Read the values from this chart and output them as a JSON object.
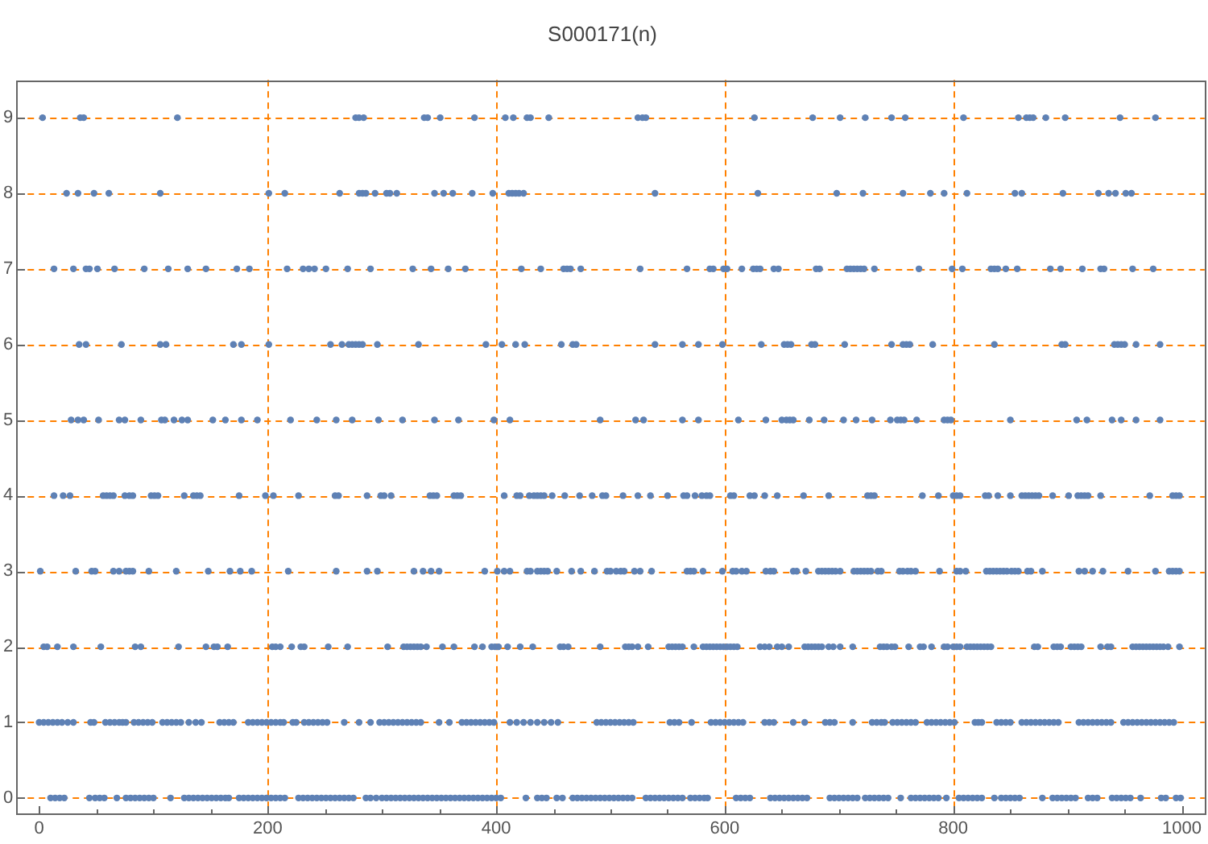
{
  "chart_data": {
    "type": "scatter",
    "title": "S000171(n)",
    "color": "#5e81b5",
    "marker": "circle",
    "x": [
      3,
      36,
      39,
      121,
      277,
      280,
      284,
      337,
      340,
      351,
      381,
      408,
      415,
      427,
      430,
      446,
      524,
      528,
      531,
      626,
      677,
      701,
      723,
      746,
      758,
      809,
      857,
      864,
      867,
      870,
      881,
      898,
      946,
      977,
      24,
      34,
      48,
      61,
      106,
      201,
      215,
      263,
      280,
      283,
      286,
      294,
      304,
      307,
      313,
      346,
      354,
      362,
      379,
      397,
      411,
      414,
      417,
      420,
      424,
      539,
      629,
      698,
      721,
      756,
      780,
      792,
      812,
      854,
      860,
      896,
      927,
      936,
      942,
      951,
      956,
      13,
      30,
      41,
      44,
      51,
      66,
      92,
      113,
      130,
      146,
      173,
      184,
      217,
      231,
      236,
      241,
      251,
      270,
      290,
      327,
      343,
      358,
      373,
      422,
      439,
      459,
      462,
      465,
      474,
      526,
      567,
      587,
      590,
      599,
      602,
      615,
      625,
      628,
      631,
      643,
      647,
      680,
      683,
      707,
      710,
      713,
      716,
      719,
      722,
      731,
      770,
      799,
      808,
      833,
      836,
      839,
      846,
      856,
      885,
      894,
      913,
      929,
      932,
      957,
      975,
      35,
      41,
      72,
      106,
      111,
      170,
      177,
      201,
      255,
      265,
      271,
      274,
      277,
      280,
      283,
      296,
      332,
      391,
      405,
      417,
      425,
      457,
      467,
      470,
      539,
      563,
      577,
      598,
      632,
      652,
      655,
      658,
      676,
      679,
      705,
      746,
      756,
      759,
      762,
      782,
      836,
      895,
      898,
      941,
      944,
      947,
      950,
      960,
      981,
      28,
      34,
      39,
      52,
      70,
      75,
      89,
      107,
      110,
      118,
      125,
      130,
      152,
      163,
      177,
      191,
      220,
      243,
      260,
      274,
      297,
      318,
      346,
      367,
      398,
      412,
      491,
      522,
      529,
      563,
      577,
      612,
      636,
      650,
      654,
      657,
      660,
      674,
      687,
      704,
      715,
      729,
      745,
      751,
      754,
      757,
      768,
      792,
      795,
      798,
      850,
      908,
      917,
      939,
      947,
      960,
      981,
      13,
      21,
      27,
      56,
      59,
      62,
      65,
      75,
      79,
      82,
      98,
      101,
      104,
      127,
      135,
      138,
      141,
      175,
      198,
      205,
      227,
      259,
      262,
      287,
      299,
      302,
      308,
      342,
      345,
      348,
      363,
      366,
      369,
      407,
      418,
      421,
      429,
      433,
      436,
      439,
      442,
      449,
      460,
      473,
      484,
      493,
      496,
      511,
      524,
      535,
      550,
      564,
      567,
      574,
      580,
      584,
      587,
      605,
      608,
      622,
      626,
      635,
      646,
      669,
      691,
      725,
      728,
      731,
      773,
      787,
      800,
      803,
      806,
      828,
      831,
      839,
      850,
      860,
      863,
      866,
      869,
      872,
      875,
      887,
      901,
      909,
      912,
      915,
      918,
      929,
      972,
      992,
      995,
      998,
      1,
      32,
      46,
      49,
      65,
      70,
      76,
      79,
      82,
      96,
      120,
      148,
      167,
      176,
      186,
      218,
      260,
      287,
      296,
      328,
      336,
      343,
      350,
      390,
      401,
      407,
      412,
      427,
      430,
      436,
      439,
      442,
      445,
      453,
      466,
      474,
      486,
      497,
      500,
      505,
      509,
      512,
      521,
      526,
      536,
      567,
      570,
      573,
      581,
      598,
      607,
      610,
      615,
      619,
      636,
      640,
      643,
      660,
      663,
      671,
      682,
      685,
      688,
      691,
      694,
      697,
      701,
      713,
      716,
      719,
      722,
      725,
      728,
      734,
      737,
      753,
      756,
      760,
      763,
      767,
      788,
      803,
      806,
      811,
      829,
      832,
      835,
      838,
      841,
      844,
      847,
      851,
      854,
      857,
      865,
      868,
      878,
      910,
      915,
      922,
      931,
      953,
      977,
      989,
      992,
      995,
      998,
      4,
      7,
      16,
      30,
      54,
      84,
      89,
      122,
      146,
      153,
      156,
      165,
      204,
      207,
      211,
      221,
      229,
      232,
      253,
      270,
      305,
      319,
      322,
      325,
      328,
      331,
      334,
      339,
      353,
      363,
      381,
      388,
      396,
      399,
      402,
      410,
      421,
      432,
      456,
      459,
      463,
      491,
      513,
      516,
      519,
      524,
      533,
      551,
      554,
      557,
      560,
      563,
      573,
      581,
      584,
      587,
      590,
      593,
      596,
      599,
      602,
      605,
      608,
      611,
      631,
      635,
      639,
      646,
      650,
      656,
      670,
      673,
      676,
      679,
      682,
      685,
      691,
      695,
      701,
      712,
      736,
      739,
      742,
      746,
      749,
      761,
      771,
      774,
      781,
      792,
      795,
      800,
      803,
      806,
      812,
      815,
      818,
      821,
      824,
      827,
      830,
      833,
      871,
      874,
      888,
      891,
      894,
      903,
      906,
      909,
      912,
      929,
      935,
      938,
      957,
      960,
      963,
      966,
      969,
      972,
      975,
      978,
      981,
      984,
      988,
      998,
      0,
      4,
      8,
      12,
      16,
      20,
      25,
      30,
      45,
      48,
      58,
      62,
      66,
      70,
      73,
      76,
      83,
      87,
      91,
      95,
      99,
      108,
      112,
      116,
      120,
      124,
      131,
      137,
      142,
      158,
      162,
      166,
      170,
      183,
      187,
      191,
      195,
      199,
      203,
      207,
      211,
      214,
      222,
      225,
      232,
      236,
      240,
      244,
      248,
      252,
      267,
      280,
      290,
      298,
      302,
      306,
      310,
      314,
      318,
      322,
      326,
      330,
      334,
      350,
      359,
      370,
      374,
      378,
      382,
      386,
      390,
      394,
      398,
      412,
      418,
      424,
      430,
      436,
      442,
      448,
      454,
      488,
      492,
      496,
      500,
      504,
      508,
      512,
      516,
      520,
      552,
      556,
      560,
      571,
      588,
      592,
      596,
      600,
      604,
      608,
      612,
      616,
      635,
      639,
      643,
      660,
      670,
      688,
      692,
      696,
      712,
      729,
      733,
      737,
      740,
      747,
      751,
      755,
      759,
      763,
      767,
      777,
      781,
      785,
      789,
      793,
      797,
      801,
      819,
      822,
      825,
      838,
      842,
      846,
      850,
      860,
      864,
      868,
      872,
      876,
      880,
      884,
      888,
      892,
      910,
      914,
      918,
      922,
      926,
      930,
      934,
      938,
      949,
      953,
      957,
      961,
      965,
      969,
      973,
      977,
      981,
      985,
      989,
      993,
      10,
      14,
      18,
      22,
      44,
      49,
      53,
      57,
      68,
      76,
      80,
      84,
      88,
      92,
      96,
      100,
      115,
      127,
      131,
      135,
      139,
      143,
      147,
      151,
      155,
      159,
      163,
      166,
      175,
      179,
      183,
      187,
      191,
      195,
      199,
      203,
      207,
      211,
      215,
      227,
      231,
      235,
      239,
      243,
      247,
      251,
      255,
      259,
      263,
      267,
      271,
      275,
      286,
      290,
      295,
      300,
      304,
      308,
      312,
      316,
      320,
      324,
      328,
      332,
      336,
      340,
      344,
      348,
      352,
      356,
      360,
      364,
      368,
      372,
      376,
      380,
      384,
      388,
      392,
      396,
      400,
      404,
      426,
      436,
      440,
      444,
      453,
      458,
      467,
      471,
      475,
      479,
      483,
      487,
      491,
      495,
      499,
      503,
      507,
      511,
      515,
      519,
      531,
      535,
      539,
      543,
      547,
      551,
      555,
      559,
      563,
      570,
      574,
      578,
      582,
      585,
      610,
      614,
      618,
      622,
      640,
      644,
      648,
      652,
      656,
      660,
      664,
      668,
      672,
      692,
      696,
      700,
      704,
      708,
      712,
      716,
      723,
      727,
      731,
      735,
      739,
      743,
      754,
      763,
      767,
      771,
      775,
      779,
      783,
      787,
      794,
      805,
      809,
      813,
      817,
      821,
      825,
      836,
      842,
      846,
      850,
      854,
      858,
      878,
      887,
      891,
      895,
      899,
      903,
      907,
      918,
      922,
      926,
      939,
      943,
      947,
      951,
      955,
      964,
      982,
      986,
      995,
      999
    ],
    "values": [
      9,
      9,
      9,
      9,
      9,
      9,
      9,
      9,
      9,
      9,
      9,
      9,
      9,
      9,
      9,
      9,
      9,
      9,
      9,
      9,
      9,
      9,
      9,
      9,
      9,
      9,
      9,
      9,
      9,
      9,
      9,
      9,
      9,
      9,
      8,
      8,
      8,
      8,
      8,
      8,
      8,
      8,
      8,
      8,
      8,
      8,
      8,
      8,
      8,
      8,
      8,
      8,
      8,
      8,
      8,
      8,
      8,
      8,
      8,
      8,
      8,
      8,
      8,
      8,
      8,
      8,
      8,
      8,
      8,
      8,
      8,
      8,
      8,
      8,
      8,
      7,
      7,
      7,
      7,
      7,
      7,
      7,
      7,
      7,
      7,
      7,
      7,
      7,
      7,
      7,
      7,
      7,
      7,
      7,
      7,
      7,
      7,
      7,
      7,
      7,
      7,
      7,
      7,
      7,
      7,
      7,
      7,
      7,
      7,
      7,
      7,
      7,
      7,
      7,
      7,
      7,
      7,
      7,
      7,
      7,
      7,
      7,
      7,
      7,
      7,
      7,
      7,
      7,
      7,
      7,
      7,
      7,
      7,
      7,
      7,
      7,
      7,
      7,
      7,
      7,
      6,
      6,
      6,
      6,
      6,
      6,
      6,
      6,
      6,
      6,
      6,
      6,
      6,
      6,
      6,
      6,
      6,
      6,
      6,
      6,
      6,
      6,
      6,
      6,
      6,
      6,
      6,
      6,
      6,
      6,
      6,
      6,
      6,
      6,
      6,
      6,
      6,
      6,
      6,
      6,
      6,
      6,
      6,
      6,
      6,
      6,
      6,
      6,
      6,
      5,
      5,
      5,
      5,
      5,
      5,
      5,
      5,
      5,
      5,
      5,
      5,
      5,
      5,
      5,
      5,
      5,
      5,
      5,
      5,
      5,
      5,
      5,
      5,
      5,
      5,
      5,
      5,
      5,
      5,
      5,
      5,
      5,
      5,
      5,
      5,
      5,
      5,
      5,
      5,
      5,
      5,
      5,
      5,
      5,
      5,
      5,
      5,
      5,
      5,
      5,
      5,
      5,
      5,
      5,
      5,
      5,
      4,
      4,
      4,
      4,
      4,
      4,
      4,
      4,
      4,
      4,
      4,
      4,
      4,
      4,
      4,
      4,
      4,
      4,
      4,
      4,
      4,
      4,
      4,
      4,
      4,
      4,
      4,
      4,
      4,
      4,
      4,
      4,
      4,
      4,
      4,
      4,
      4,
      4,
      4,
      4,
      4,
      4,
      4,
      4,
      4,
      4,
      4,
      4,
      4,
      4,
      4,
      4,
      4,
      4,
      4,
      4,
      4,
      4,
      4,
      4,
      4,
      4,
      4,
      4,
      4,
      4,
      4,
      4,
      4,
      4,
      4,
      4,
      4,
      4,
      4,
      4,
      4,
      4,
      4,
      4,
      4,
      4,
      4,
      4,
      4,
      4,
      4,
      4,
      4,
      4,
      4,
      4,
      4,
      4,
      3,
      3,
      3,
      3,
      3,
      3,
      3,
      3,
      3,
      3,
      3,
      3,
      3,
      3,
      3,
      3,
      3,
      3,
      3,
      3,
      3,
      3,
      3,
      3,
      3,
      3,
      3,
      3,
      3,
      3,
      3,
      3,
      3,
      3,
      3,
      3,
      3,
      3,
      3,
      3,
      3,
      3,
      3,
      3,
      3,
      3,
      3,
      3,
      3,
      3,
      3,
      3,
      3,
      3,
      3,
      3,
      3,
      3,
      3,
      3,
      3,
      3,
      3,
      3,
      3,
      3,
      3,
      3,
      3,
      3,
      3,
      3,
      3,
      3,
      3,
      3,
      3,
      3,
      3,
      3,
      3,
      3,
      3,
      3,
      3,
      3,
      3,
      3,
      3,
      3,
      3,
      3,
      3,
      3,
      3,
      3,
      3,
      3,
      3,
      3,
      3,
      3,
      3,
      3,
      3,
      3,
      3,
      2,
      2,
      2,
      2,
      2,
      2,
      2,
      2,
      2,
      2,
      2,
      2,
      2,
      2,
      2,
      2,
      2,
      2,
      2,
      2,
      2,
      2,
      2,
      2,
      2,
      2,
      2,
      2,
      2,
      2,
      2,
      2,
      2,
      2,
      2,
      2,
      2,
      2,
      2,
      2,
      2,
      2,
      2,
      2,
      2,
      2,
      2,
      2,
      2,
      2,
      2,
      2,
      2,
      2,
      2,
      2,
      2,
      2,
      2,
      2,
      2,
      2,
      2,
      2,
      2,
      2,
      2,
      2,
      2,
      2,
      2,
      2,
      2,
      2,
      2,
      2,
      2,
      2,
      2,
      2,
      2,
      2,
      2,
      2,
      2,
      2,
      2,
      2,
      2,
      2,
      2,
      2,
      2,
      2,
      2,
      2,
      2,
      2,
      2,
      2,
      2,
      2,
      2,
      2,
      2,
      2,
      2,
      2,
      2,
      2,
      2,
      2,
      2,
      2,
      2,
      2,
      2,
      2,
      2,
      2,
      2,
      2,
      2,
      2,
      2,
      2,
      1,
      1,
      1,
      1,
      1,
      1,
      1,
      1,
      1,
      1,
      1,
      1,
      1,
      1,
      1,
      1,
      1,
      1,
      1,
      1,
      1,
      1,
      1,
      1,
      1,
      1,
      1,
      1,
      1,
      1,
      1,
      1,
      1,
      1,
      1,
      1,
      1,
      1,
      1,
      1,
      1,
      1,
      1,
      1,
      1,
      1,
      1,
      1,
      1,
      1,
      1,
      1,
      1,
      1,
      1,
      1,
      1,
      1,
      1,
      1,
      1,
      1,
      1,
      1,
      1,
      1,
      1,
      1,
      1,
      1,
      1,
      1,
      1,
      1,
      1,
      1,
      1,
      1,
      1,
      1,
      1,
      1,
      1,
      1,
      1,
      1,
      1,
      1,
      1,
      1,
      1,
      1,
      1,
      1,
      1,
      1,
      1,
      1,
      1,
      1,
      1,
      1,
      1,
      1,
      1,
      1,
      1,
      1,
      1,
      1,
      1,
      1,
      1,
      1,
      1,
      1,
      1,
      1,
      1,
      1,
      1,
      1,
      1,
      1,
      1,
      1,
      1,
      1,
      1,
      1,
      1,
      1,
      1,
      1,
      1,
      1,
      1,
      1,
      1,
      1,
      1,
      1,
      1,
      1,
      1,
      1,
      1,
      1,
      1,
      1,
      1,
      1,
      1,
      1,
      1,
      1,
      1,
      1,
      1,
      1,
      1,
      1,
      1,
      1,
      0,
      0,
      0,
      0,
      0,
      0,
      0,
      0,
      0,
      0,
      0,
      0,
      0,
      0,
      0,
      0,
      0,
      0,
      0,
      0,
      0,
      0,
      0,
      0,
      0,
      0,
      0,
      0,
      0,
      0,
      0,
      0,
      0,
      0,
      0,
      0,
      0,
      0,
      0,
      0,
      0,
      0,
      0,
      0,
      0,
      0,
      0,
      0,
      0,
      0,
      0,
      0,
      0,
      0,
      0,
      0,
      0,
      0,
      0,
      0,
      0,
      0,
      0,
      0,
      0,
      0,
      0,
      0,
      0,
      0,
      0,
      0,
      0,
      0,
      0,
      0,
      0,
      0,
      0,
      0,
      0,
      0,
      0,
      0,
      0,
      0,
      0,
      0,
      0,
      0,
      0,
      0,
      0,
      0,
      0,
      0,
      0,
      0,
      0,
      0,
      0,
      0,
      0,
      0,
      0,
      0,
      0,
      0,
      0,
      0,
      0,
      0,
      0,
      0,
      0,
      0,
      0,
      0,
      0,
      0,
      0,
      0,
      0,
      0,
      0,
      0,
      0,
      0,
      0,
      0,
      0,
      0,
      0,
      0,
      0,
      0,
      0,
      0,
      0,
      0,
      0,
      0,
      0,
      0,
      0,
      0,
      0,
      0,
      0,
      0,
      0,
      0,
      0,
      0,
      0,
      0,
      0,
      0,
      0,
      0,
      0,
      0,
      0,
      0,
      0,
      0,
      0,
      0,
      0,
      0,
      0,
      0,
      0,
      0,
      0,
      0,
      0,
      0,
      0,
      0,
      0,
      0,
      0
    ],
    "xlim": [
      -20,
      1020
    ],
    "ylim": [
      -0.2,
      9.5
    ],
    "xticks": [
      0,
      {
        "value": 50,
        "label": null
      },
      {
        "value": 100,
        "label": null
      },
      {
        "value": 150,
        "label": null
      },
      200,
      {
        "value": 250,
        "label": null
      },
      {
        "value": 300,
        "label": null
      },
      {
        "value": 350,
        "label": null
      },
      400,
      {
        "value": 450,
        "label": null
      },
      {
        "value": 500,
        "label": null
      },
      {
        "value": 550,
        "label": null
      },
      600,
      {
        "value": 650,
        "label": null
      },
      {
        "value": 700,
        "label": null
      },
      {
        "value": 750,
        "label": null
      },
      800,
      {
        "value": 850,
        "label": null
      },
      {
        "value": 900,
        "label": null
      },
      {
        "value": 950,
        "label": null
      },
      1000
    ],
    "yticks": [
      0,
      1,
      2,
      3,
      4,
      5,
      6,
      7,
      8,
      9
    ],
    "grid": "y",
    "ref_lines": [
      {
        "axis": "x",
        "value": 200,
        "color": "#ff8000",
        "line_style": "dashed"
      },
      {
        "axis": "x",
        "value": 400,
        "color": "#ff8000",
        "line_style": "dashed"
      },
      {
        "axis": "x",
        "value": 600,
        "color": "#ff8000",
        "line_style": "dashed"
      },
      {
        "axis": "x",
        "value": 800,
        "color": "#ff8000",
        "line_style": "dashed"
      }
    ]
  }
}
